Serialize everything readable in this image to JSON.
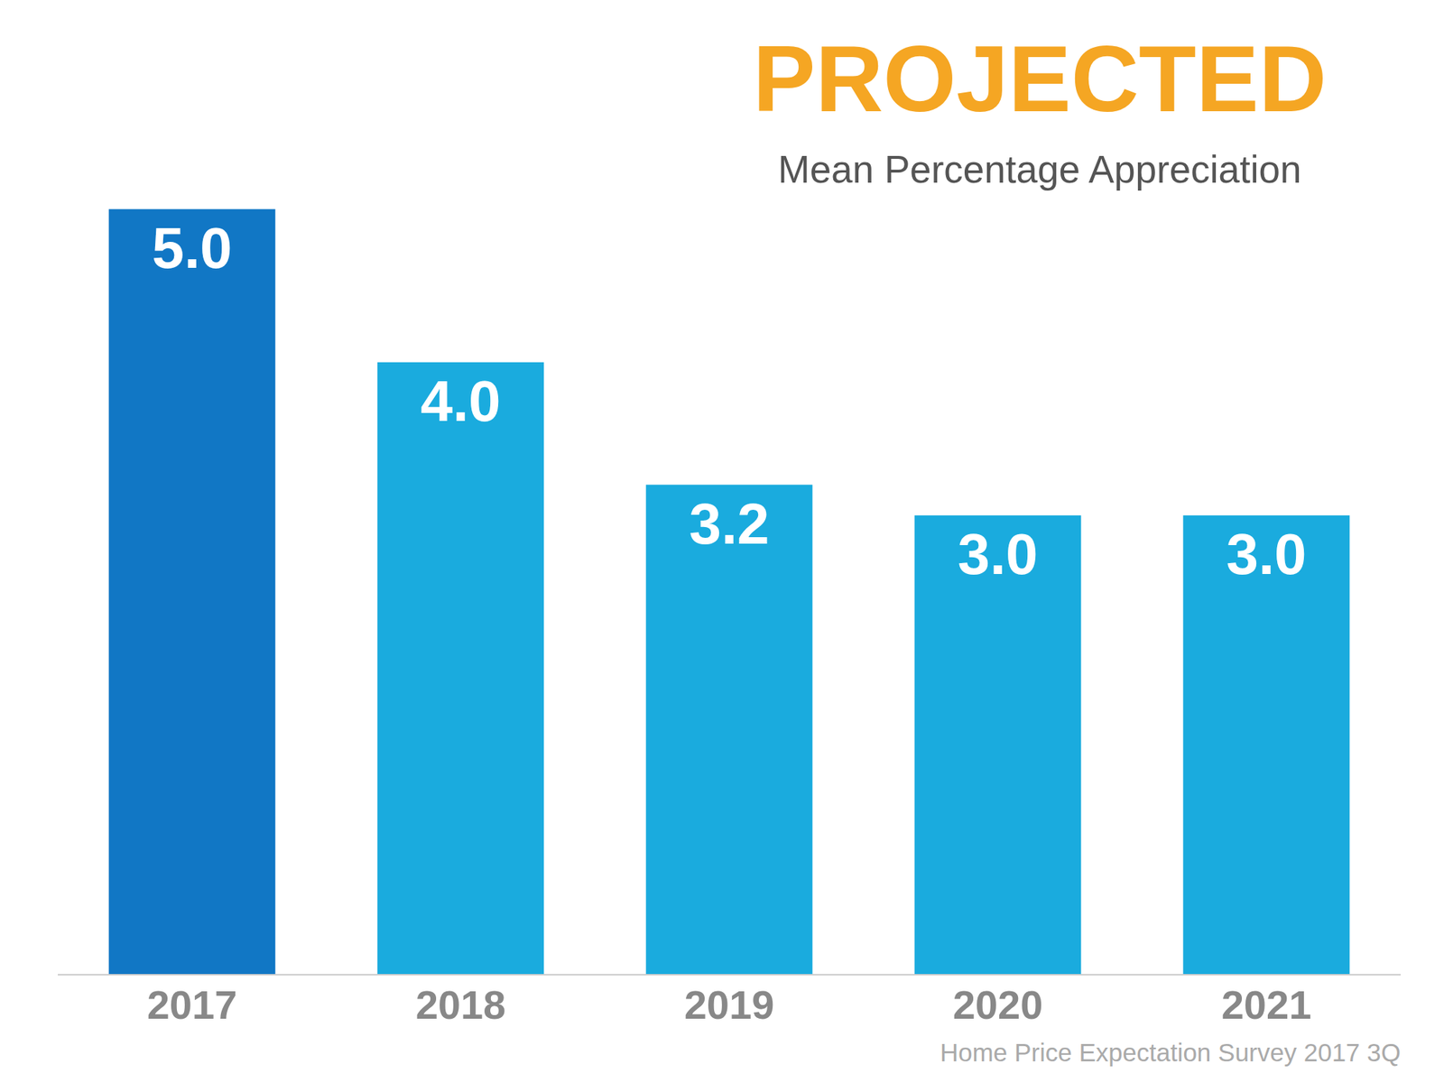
{
  "chart_data": {
    "type": "bar",
    "title": "PROJECTED",
    "subtitle": "Mean Percentage Appreciation",
    "categories": [
      "2017",
      "2018",
      "2019",
      "2020",
      "2021"
    ],
    "values": [
      5.0,
      4.0,
      3.2,
      3.0,
      3.0
    ],
    "value_labels": [
      "5.0",
      "4.0",
      "3.2",
      "3.0",
      "3.0"
    ],
    "colors": [
      "#1177C5",
      "#1AABDE",
      "#1AABDE",
      "#1AABDE",
      "#1AABDE"
    ],
    "ylim": [
      0,
      5.8
    ],
    "grid": false,
    "data_labels": true,
    "tick_labels": "x",
    "annotations": [
      "Home Price Expectation Survey 2017 3Q"
    ]
  }
}
